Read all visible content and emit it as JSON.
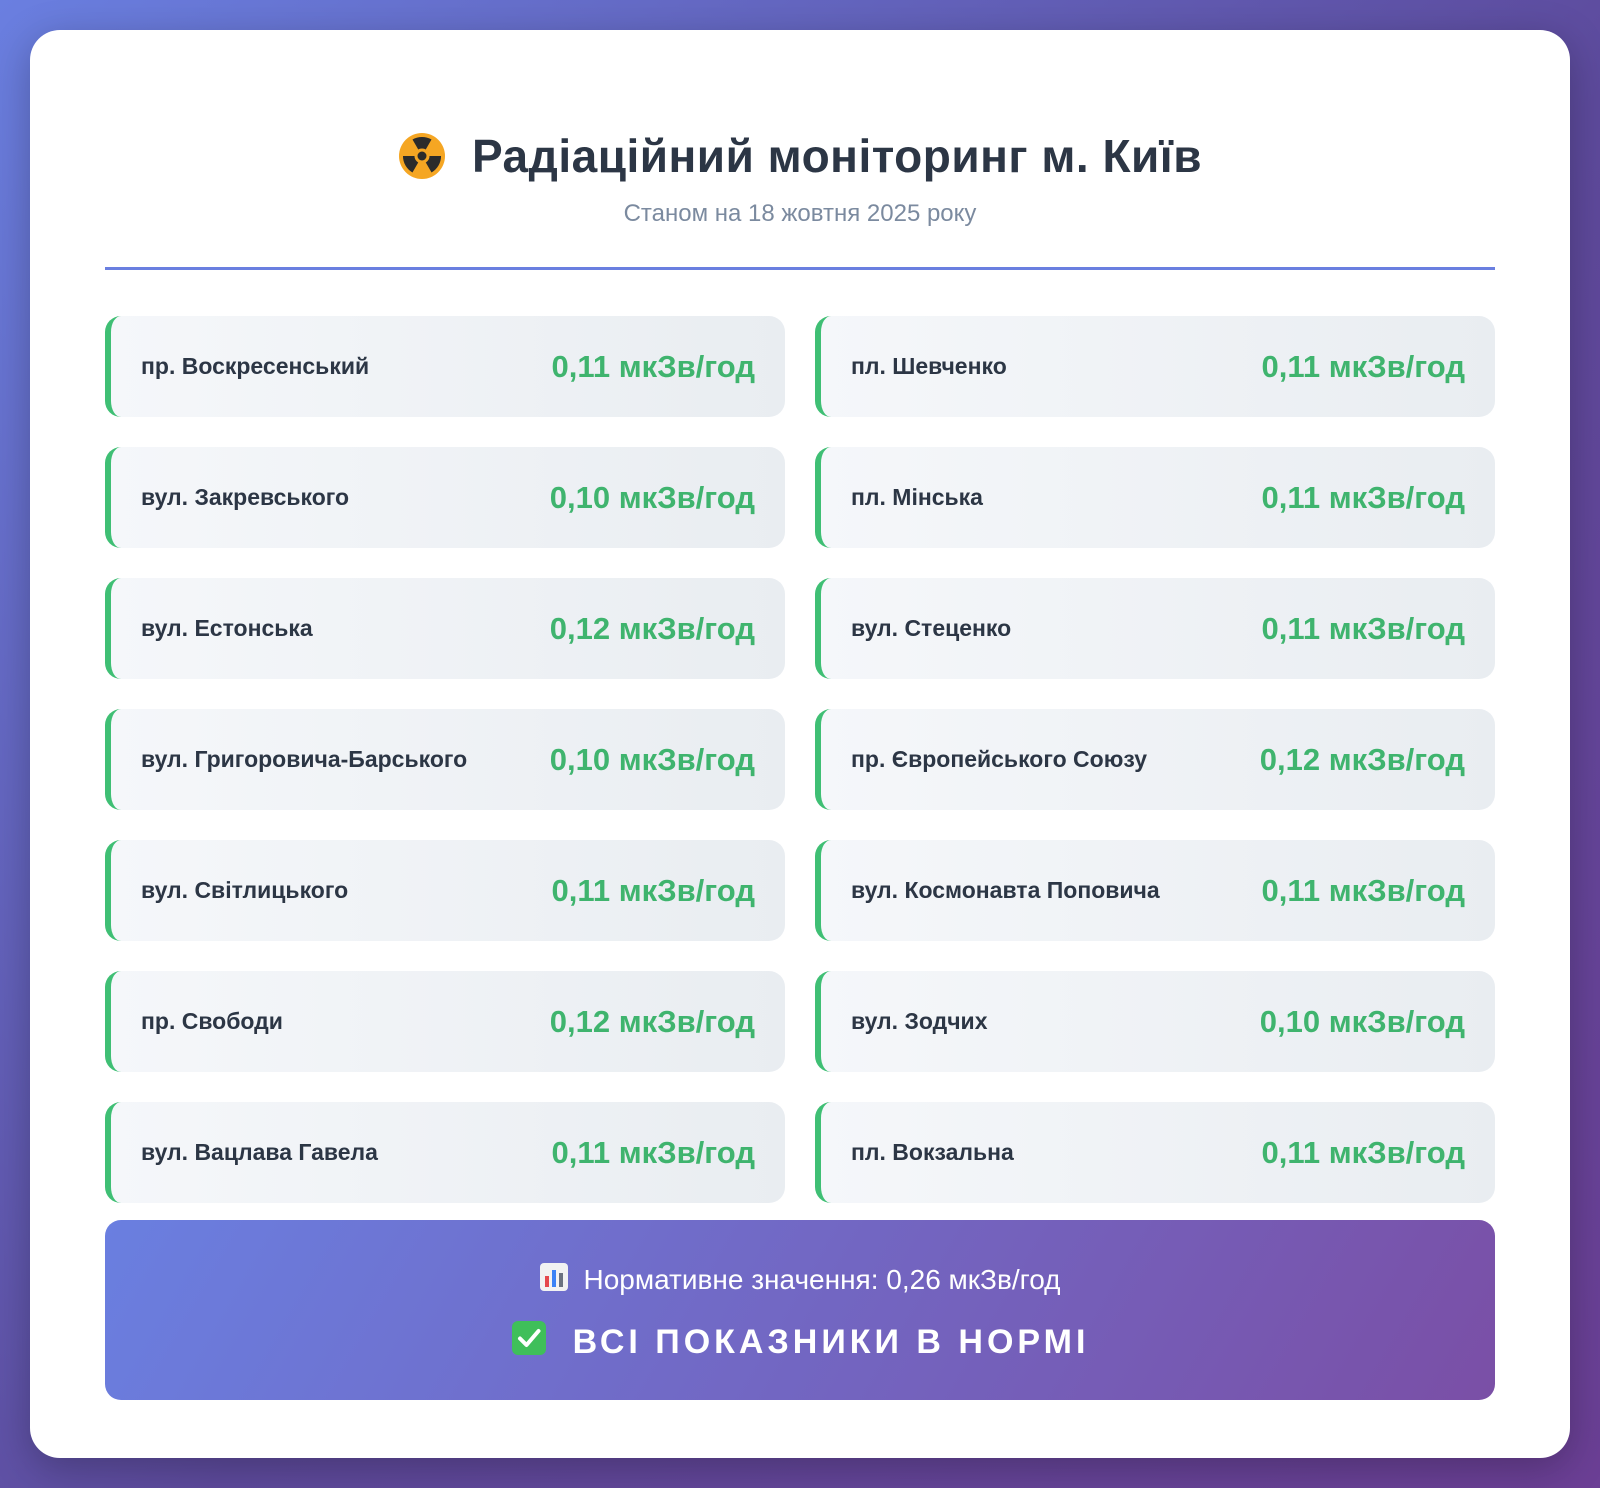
{
  "header": {
    "icon": "radiation-icon",
    "title": "Радіаційний моніторинг м. Київ",
    "subtitle": "Станом на 18 жовтня 2025 року"
  },
  "stations": [
    {
      "name": "пр. Воскресенський",
      "value": "0,11 мкЗв/год"
    },
    {
      "name": "пл. Шевченко",
      "value": "0,11 мкЗв/год"
    },
    {
      "name": "вул. Закревського",
      "value": "0,10 мкЗв/год"
    },
    {
      "name": "пл. Мінська",
      "value": "0,11 мкЗв/год"
    },
    {
      "name": "вул. Естонська",
      "value": "0,12 мкЗв/год"
    },
    {
      "name": "вул. Стеценко",
      "value": "0,11 мкЗв/год"
    },
    {
      "name": "вул. Григоровича-Барського",
      "value": "0,10 мкЗв/год"
    },
    {
      "name": "пр. Європейського Союзу",
      "value": "0,12 мкЗв/год"
    },
    {
      "name": "вул. Світлицького",
      "value": "0,11 мкЗв/год"
    },
    {
      "name": "вул. Космонавта Поповича",
      "value": "0,11 мкЗв/год"
    },
    {
      "name": "пр. Свободи",
      "value": "0,12 мкЗв/год"
    },
    {
      "name": "вул. Зодчих",
      "value": "0,10 мкЗв/год"
    },
    {
      "name": "вул. Вацлава Гавела",
      "value": "0,11 мкЗв/год"
    },
    {
      "name": "пл. Вокзальна",
      "value": "0,11 мкЗв/год"
    }
  ],
  "summary": {
    "norm_icon": "bar-chart-icon",
    "norm_text": "Нормативне значення: 0,26 мкЗв/год",
    "status_icon": "check-mark-icon",
    "status_text": "ВСІ ПОКАЗНИКИ В НОРМІ"
  },
  "colors": {
    "accent": "#6a7fe0",
    "ok_green": "#3fb46e",
    "title": "#2c3645"
  }
}
